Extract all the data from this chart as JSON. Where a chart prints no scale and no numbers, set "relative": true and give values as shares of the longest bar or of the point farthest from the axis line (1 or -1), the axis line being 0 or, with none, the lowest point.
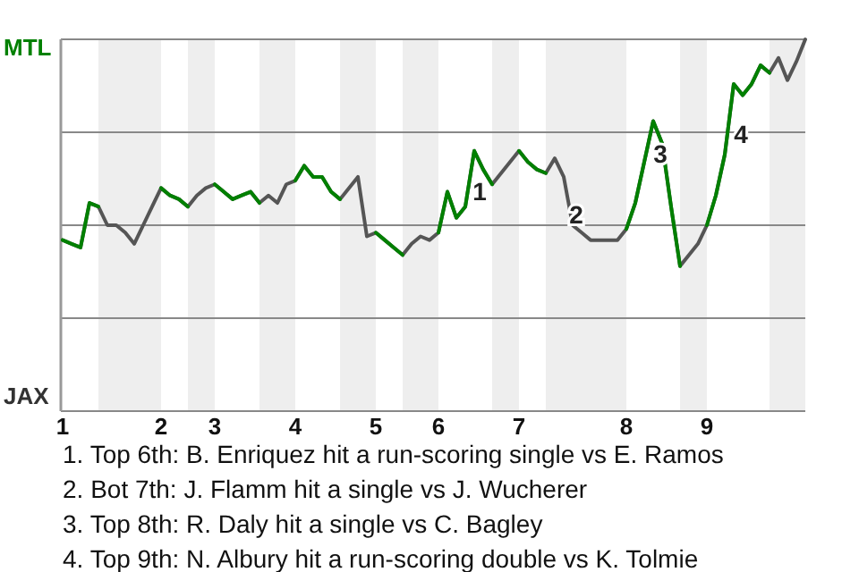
{
  "chart_data": {
    "type": "line",
    "relative": true,
    "grid": "y",
    "marker": "none",
    "line_style": "solid",
    "categories": [
      "1",
      null,
      null,
      null,
      null,
      null,
      null,
      null,
      null,
      null,
      null,
      "2",
      null,
      null,
      null,
      null,
      null,
      "3",
      null,
      null,
      null,
      null,
      null,
      null,
      null,
      null,
      "4",
      null,
      null,
      null,
      null,
      null,
      null,
      null,
      null,
      "5",
      null,
      null,
      null,
      null,
      null,
      null,
      "6",
      null,
      null,
      null,
      null,
      null,
      null,
      null,
      null,
      "7",
      null,
      null,
      null,
      null,
      null,
      null,
      null,
      null,
      null,
      null,
      null,
      "8",
      null,
      null,
      null,
      null,
      null,
      null,
      null,
      null,
      "9",
      null,
      null,
      null,
      null,
      null,
      null,
      null,
      null,
      null,
      null,
      null
    ],
    "series": [
      {
        "color": "#555555",
        "values": [
          0.46,
          0.45,
          0.44,
          0.56,
          0.55,
          0.5,
          0.5,
          0.48,
          0.45,
          0.5,
          0.55,
          0.6,
          0.58,
          0.57,
          0.55,
          0.58,
          0.6,
          0.61,
          0.59,
          0.57,
          0.58,
          0.59,
          0.56,
          0.58,
          0.56,
          0.61,
          0.62,
          0.66,
          0.63,
          0.63,
          0.59,
          0.57,
          0.6,
          0.63,
          0.47,
          0.48,
          0.46,
          0.44,
          0.42,
          0.45,
          0.47,
          0.46,
          0.48,
          0.59,
          0.52,
          0.55,
          0.7,
          0.65,
          0.61,
          0.64,
          0.67,
          0.7,
          0.67,
          0.65,
          0.64,
          0.68,
          0.63,
          0.5,
          0.48,
          0.46,
          0.46,
          0.46,
          0.46,
          0.49,
          0.56,
          0.67,
          0.78,
          0.72,
          0.55,
          0.39,
          0.42,
          0.45,
          0.5,
          0.58,
          0.69,
          0.88,
          0.85,
          0.88,
          0.93,
          0.91,
          0.95,
          0.89,
          0.94,
          1.0
        ],
        "colors": [
          "#008000",
          "#008000",
          "#008000",
          "#008000",
          "#555555",
          "#555555",
          "#555555",
          "#555555",
          "#555555",
          "#555555",
          "#555555",
          "#008000",
          "#008000",
          "#008000",
          "#555555",
          "#555555",
          "#555555",
          "#008000",
          "#008000",
          "#008000",
          "#008000",
          "#008000",
          "#555555",
          "#555555",
          "#555555",
          "#555555",
          "#008000",
          "#008000",
          "#008000",
          "#008000",
          "#008000",
          "#555555",
          "#555555",
          "#555555",
          "#555555",
          "#008000",
          "#008000",
          "#008000",
          "#555555",
          "#555555",
          "#555555",
          "#555555",
          "#008000",
          "#008000",
          "#008000",
          "#008000",
          "#008000",
          "#008000",
          "#555555",
          "#555555",
          "#555555",
          "#008000",
          "#008000",
          "#008000",
          "#555555",
          "#555555",
          "#555555",
          "#555555",
          "#555555",
          "#555555",
          "#555555",
          "#555555",
          "#555555",
          "#008000",
          "#008000",
          "#008000",
          "#008000",
          "#008000",
          "#008000",
          "#555555",
          "#555555",
          "#555555",
          "#008000",
          "#008000",
          "#008000",
          "#008000",
          "#008000",
          "#008000",
          "#008000",
          "#555555",
          "#555555",
          "#555555",
          "#555555",
          "#555555"
        ]
      }
    ],
    "annotations": [
      "MTL",
      "JAX",
      "1",
      "2",
      "3",
      "4",
      "1. Top 6th: B. Enriquez hit a run-scoring single vs E. Ramos",
      "2. Bot 7th: J. Flamm hit a single vs J. Wucherer",
      "3. Top 8th: R. Daly hit a single vs C. Bagley",
      "4. Top 9th: N. Albury hit a run-scoring double vs K. Tolmie"
    ]
  }
}
